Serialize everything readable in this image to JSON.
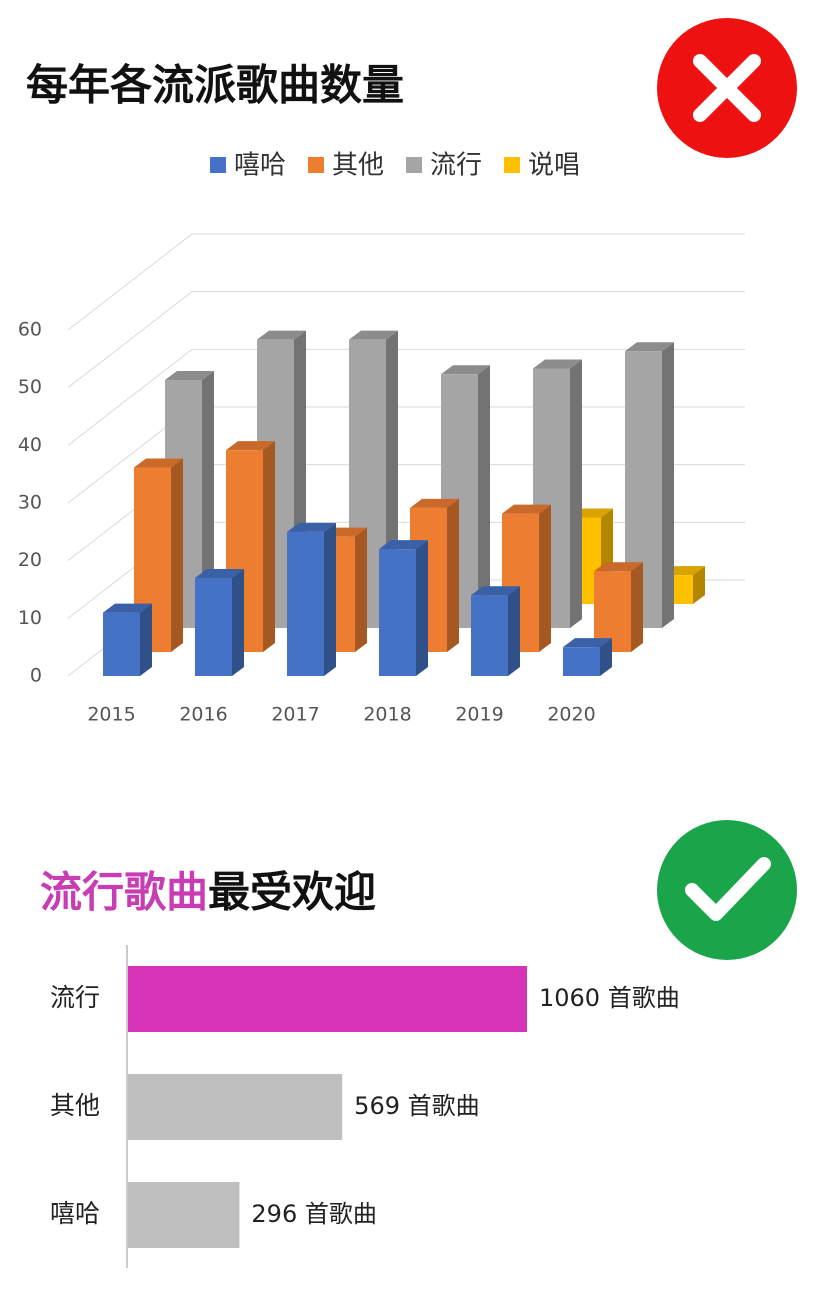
{
  "chart_data": [
    {
      "type": "bar3d",
      "title": "每年各流派歌曲数量",
      "categories": [
        "2015",
        "2016",
        "2017",
        "2018",
        "2019",
        "2020"
      ],
      "series": [
        {
          "name": "嘻哈",
          "color": "#4472c4",
          "values": [
            11,
            17,
            25,
            22,
            14,
            5
          ]
        },
        {
          "name": "其他",
          "color": "#ed7d31",
          "values": [
            32,
            35,
            20,
            25,
            24,
            14
          ]
        },
        {
          "name": "流行",
          "color": "#a5a5a5",
          "values": [
            43,
            50,
            50,
            44,
            45,
            48
          ]
        },
        {
          "name": "说唱",
          "color": "#ffc000",
          "values": [
            2,
            2,
            0,
            0,
            15,
            5
          ]
        }
      ],
      "ylim": [
        0,
        60
      ],
      "yticks": [
        0,
        10,
        20,
        30,
        40,
        50,
        60
      ],
      "grid": true
    },
    {
      "type": "hbar",
      "title_parts": [
        "流行歌曲",
        "最受欢迎"
      ],
      "title_colors": [
        "#c83cb4",
        "#111111"
      ],
      "categories": [
        "流行",
        "其他",
        "嘻哈"
      ],
      "values": [
        1060,
        569,
        296
      ],
      "value_labels": [
        "1060 首歌曲",
        "569 首歌曲",
        "296 首歌曲"
      ],
      "colors": [
        "#d633b8",
        "#bfbfbf",
        "#bfbfbf"
      ]
    }
  ]
}
